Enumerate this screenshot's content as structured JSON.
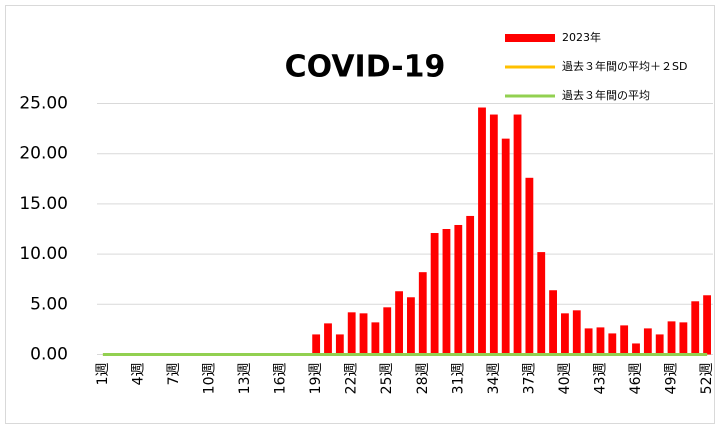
{
  "chart_data": {
    "type": "bar",
    "title": "COVID-19",
    "categories": [
      "1週",
      null,
      null,
      "4週",
      null,
      null,
      "7週",
      null,
      null,
      "10週",
      null,
      null,
      "13週",
      null,
      null,
      "16週",
      null,
      null,
      "19週",
      null,
      null,
      "22週",
      null,
      null,
      "25週",
      null,
      null,
      "28週",
      null,
      null,
      "31週",
      null,
      null,
      "34週",
      null,
      null,
      "37週",
      null,
      null,
      "40週",
      null,
      null,
      "43週",
      null,
      null,
      "46週",
      null,
      null,
      "49週",
      null,
      null,
      "52週"
    ],
    "series": [
      {
        "name": "2023年",
        "type": "bar",
        "color": "#ff0000",
        "values": [
          0,
          0,
          0,
          0,
          0,
          0,
          0,
          0,
          0,
          0,
          0,
          0,
          0,
          0,
          0,
          0,
          0,
          0,
          2.0,
          3.1,
          2.0,
          4.2,
          4.1,
          3.2,
          4.7,
          6.3,
          5.7,
          8.2,
          12.1,
          12.5,
          12.9,
          13.8,
          24.6,
          23.9,
          21.5,
          23.9,
          17.6,
          10.2,
          6.4,
          4.1,
          4.4,
          2.6,
          2.7,
          2.1,
          2.9,
          1.1,
          2.6,
          2.0,
          3.3,
          3.2,
          5.3,
          5.9
        ]
      },
      {
        "name": "過去３年間の平均＋２SD",
        "type": "line",
        "color": "#ffc000",
        "values": [
          0,
          0,
          0,
          0,
          0,
          0,
          0,
          0,
          0,
          0,
          0,
          0,
          0,
          0,
          0,
          0,
          0,
          0,
          0,
          0,
          0,
          0,
          0,
          0,
          0,
          0,
          0,
          0,
          0,
          0,
          0,
          0,
          0,
          0,
          0,
          0,
          0,
          0,
          0,
          0,
          0,
          0,
          0,
          0,
          0,
          0,
          0,
          0,
          0,
          0,
          0,
          0
        ]
      },
      {
        "name": "過去３年間の平均",
        "type": "line",
        "color": "#92d050",
        "values": [
          0,
          0,
          0,
          0,
          0,
          0,
          0,
          0,
          0,
          0,
          0,
          0,
          0,
          0,
          0,
          0,
          0,
          0,
          0,
          0,
          0,
          0,
          0,
          0,
          0,
          0,
          0,
          0,
          0,
          0,
          0,
          0,
          0,
          0,
          0,
          0,
          0,
          0,
          0,
          0,
          0,
          0,
          0,
          0,
          0,
          0,
          0,
          0,
          0,
          0,
          0,
          0
        ]
      }
    ],
    "ylim": [
      0,
      25
    ],
    "yticks": [
      {
        "value": 0,
        "label": "0.00"
      },
      {
        "value": 5,
        "label": "5.00"
      },
      {
        "value": 10,
        "label": "10.00"
      },
      {
        "value": 15,
        "label": "15.00"
      },
      {
        "value": 20,
        "label": "20.00"
      },
      {
        "value": 25,
        "label": "25.00"
      }
    ],
    "grid": true,
    "legend": "top-right"
  }
}
